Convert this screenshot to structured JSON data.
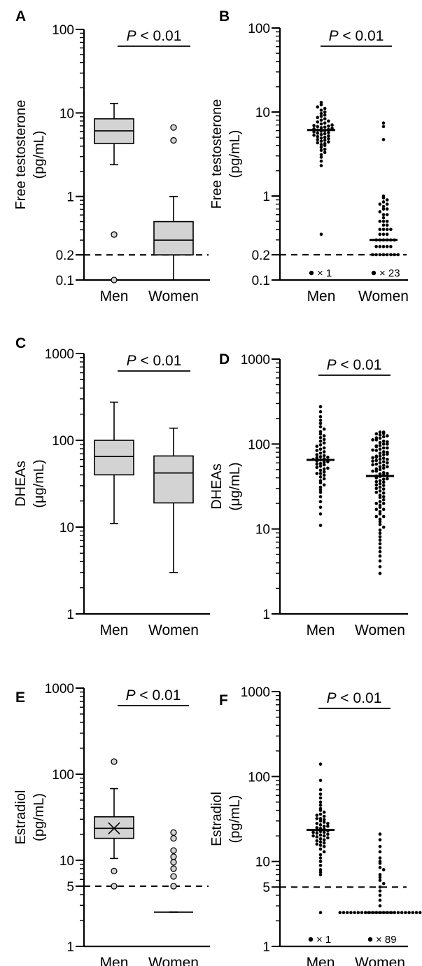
{
  "figure": {
    "panel_letters": [
      "A",
      "B",
      "C",
      "D",
      "E",
      "F"
    ],
    "pvalue_text": {
      "p": "P",
      "rest": " < 0.01"
    },
    "reference_lines": {
      "free_testosterone": 0.2,
      "estradiol": 5
    }
  },
  "chart_data": [
    {
      "panel": "A",
      "type": "box",
      "ylabel": [
        "Free testosterone",
        "(pg/mL)"
      ],
      "yscale": "log",
      "ylim": [
        0.1,
        100
      ],
      "yticks": [
        0.1,
        0.2,
        1,
        10,
        100
      ],
      "ytick_labels": [
        "0.1",
        "0.2",
        "1",
        "10",
        "100"
      ],
      "categories": [
        "Men",
        "Women"
      ],
      "pvalue": "P < 0.01",
      "reference_line": 0.2,
      "boxes": [
        {
          "name": "Men",
          "whisker_low": 2.4,
          "q1": 4.3,
          "median": 6.1,
          "q3": 8.5,
          "whisker_high": 13,
          "outliers": [
            0.35,
            0.1
          ]
        },
        {
          "name": "Women",
          "whisker_low": 0.1,
          "q1": 0.2,
          "median": 0.3,
          "q3": 0.5,
          "whisker_high": 1.0,
          "outliers": [
            6.7,
            4.7
          ]
        }
      ]
    },
    {
      "panel": "B",
      "type": "scatter",
      "ylabel": [
        "Free testosterone",
        "(pg/mL)"
      ],
      "yscale": "log",
      "ylim": [
        0.1,
        100
      ],
      "yticks": [
        0.1,
        0.2,
        1,
        10,
        100
      ],
      "ytick_labels": [
        "0.1",
        "0.2",
        "1",
        "10",
        "100"
      ],
      "categories": [
        "Men",
        "Women"
      ],
      "pvalue": "P < 0.01",
      "reference_line": 0.2,
      "series": [
        {
          "name": "Men",
          "median": 6.1,
          "points": [
            2.3,
            2.6,
            2.9,
            3.1,
            3.3,
            3.5,
            3.6,
            3.8,
            4.0,
            4.1,
            4.2,
            4.3,
            4.4,
            4.5,
            4.6,
            4.7,
            4.8,
            4.9,
            5.0,
            5.1,
            5.2,
            5.3,
            5.4,
            5.5,
            5.6,
            5.7,
            5.8,
            5.9,
            6.0,
            6.1,
            6.2,
            6.3,
            6.4,
            6.5,
            6.6,
            6.7,
            6.8,
            6.9,
            7.0,
            7.2,
            7.4,
            7.6,
            7.8,
            8.0,
            8.3,
            8.6,
            8.9,
            9.2,
            9.6,
            10.0,
            10.5,
            11.0,
            11.5,
            12.2,
            13.0,
            0.35
          ]
        },
        {
          "name": "Women",
          "median": 0.3,
          "points": [
            7.4,
            6.7,
            4.7,
            1.0,
            0.95,
            0.9,
            0.85,
            0.8,
            0.8,
            0.75,
            0.7,
            0.7,
            0.65,
            0.6,
            0.6,
            0.55,
            0.5,
            0.5,
            0.5,
            0.45,
            0.45,
            0.4,
            0.4,
            0.4,
            0.4,
            0.35,
            0.35,
            0.35,
            0.3,
            0.3,
            0.3,
            0.3,
            0.3,
            0.3,
            0.25,
            0.25,
            0.25,
            0.25,
            0.25,
            0.2,
            0.2,
            0.2,
            0.2,
            0.2,
            0.2,
            0.2,
            0.2
          ]
        }
      ],
      "below_detection": [
        {
          "category": "Men",
          "label": "× 1"
        },
        {
          "category": "Women",
          "label": "× 23"
        }
      ]
    },
    {
      "panel": "C",
      "type": "box",
      "ylabel": [
        "DHEAs",
        "(μg/mL)"
      ],
      "yscale": "log",
      "ylim": [
        1,
        1000
      ],
      "yticks": [
        1,
        10,
        100,
        1000
      ],
      "ytick_labels": [
        "1",
        "10",
        "100",
        "1000"
      ],
      "categories": [
        "Men",
        "Women"
      ],
      "pvalue": "P < 0.01",
      "boxes": [
        {
          "name": "Men",
          "whisker_low": 11,
          "q1": 40,
          "median": 65,
          "q3": 100,
          "whisker_high": 275,
          "outliers": []
        },
        {
          "name": "Women",
          "whisker_low": 3,
          "q1": 19,
          "median": 42,
          "q3": 66,
          "whisker_high": 138,
          "outliers": []
        }
      ]
    },
    {
      "panel": "D",
      "type": "scatter",
      "ylabel": [
        "DHEAs",
        "(μg/mL)"
      ],
      "yscale": "log",
      "ylim": [
        1,
        1000
      ],
      "yticks": [
        1,
        10,
        100,
        1000
      ],
      "ytick_labels": [
        "1",
        "10",
        "100",
        "1000"
      ],
      "categories": [
        "Men",
        "Women"
      ],
      "pvalue": "P < 0.01",
      "series": [
        {
          "name": "Men",
          "median": 65,
          "points": [
            11,
            15,
            18,
            21,
            24,
            27,
            29,
            31,
            33,
            35,
            37,
            39,
            41,
            43,
            45,
            47,
            49,
            51,
            53,
            55,
            57,
            59,
            61,
            63,
            65,
            67,
            69,
            71,
            73,
            75,
            78,
            81,
            84,
            87,
            90,
            94,
            98,
            103,
            108,
            113,
            119,
            125,
            131,
            140,
            150,
            160,
            175,
            190,
            210,
            240,
            275,
            62,
            58,
            70,
            66,
            52,
            45
          ]
        },
        {
          "name": "Women",
          "median": 42,
          "points": [
            3,
            3.6,
            4.2,
            4.8,
            5.4,
            6,
            6.7,
            7.4,
            8.1,
            8.9,
            9.7,
            10.5,
            11.3,
            12.2,
            13,
            14,
            15,
            16,
            17,
            18,
            19,
            20,
            21,
            22,
            23.5,
            25,
            26.5,
            28,
            29.5,
            31,
            32.5,
            34,
            35.5,
            37,
            38.5,
            40,
            41.5,
            43,
            44.5,
            46,
            48,
            50,
            52,
            54,
            56,
            58,
            60,
            62,
            64,
            66,
            68,
            70,
            72,
            75,
            78,
            81,
            84,
            87,
            90,
            93,
            96,
            100,
            104,
            108,
            112,
            117,
            122,
            128,
            133,
            138,
            24,
            27,
            30,
            33,
            36,
            39,
            42,
            45,
            48,
            51,
            54,
            57,
            60,
            63,
            66,
            69,
            72,
            76,
            80,
            85,
            90,
            95,
            100,
            106,
            112,
            118,
            125,
            132,
            138,
            20,
            17,
            14
          ]
        }
      ]
    },
    {
      "panel": "E",
      "type": "box",
      "ylabel": [
        "Estradiol",
        "(pg/mL)"
      ],
      "yscale": "log",
      "ylim": [
        1,
        1000
      ],
      "yticks": [
        1,
        5,
        10,
        100,
        1000
      ],
      "ytick_labels": [
        "1",
        "5",
        "10",
        "100",
        "1000"
      ],
      "categories": [
        "Men",
        "Women"
      ],
      "pvalue": "P < 0.01",
      "reference_line": 5,
      "boxes": [
        {
          "name": "Men",
          "whisker_low": 10.5,
          "q1": 18,
          "median": 23.5,
          "q3": 32,
          "whisker_high": 68,
          "mean": 23.5,
          "outliers": [
            140,
            7.5,
            5
          ]
        },
        {
          "name": "Women",
          "whisker_low": 2.5,
          "q1": 2.5,
          "median": 2.5,
          "q3": 2.5,
          "whisker_high": 2.5,
          "outliers": [
            21,
            18,
            13,
            11,
            9.5,
            8,
            6.5,
            5
          ]
        }
      ]
    },
    {
      "panel": "F",
      "type": "scatter",
      "ylabel": [
        "Estradiol",
        "(pg/mL)"
      ],
      "yscale": "log",
      "ylim": [
        1,
        1000
      ],
      "yticks": [
        1,
        5,
        10,
        100,
        1000
      ],
      "ytick_labels": [
        "1",
        "5",
        "10",
        "100",
        "1000"
      ],
      "categories": [
        "Men",
        "Women"
      ],
      "pvalue": "P < 0.01",
      "reference_line": 5,
      "series": [
        {
          "name": "Men",
          "median": 23.5,
          "points": [
            140,
            90,
            70,
            62,
            56,
            50,
            46,
            42,
            40,
            38,
            36,
            34,
            32,
            31,
            30,
            29,
            28,
            27,
            26,
            25,
            24.5,
            24,
            23.5,
            23,
            22.5,
            22,
            21.5,
            21,
            20.5,
            20,
            19.5,
            19,
            18.5,
            18,
            17.5,
            17,
            16.5,
            16,
            15.5,
            15,
            14,
            13,
            12,
            11,
            10,
            9,
            8,
            7.5,
            7,
            2.5,
            26,
            28,
            32,
            35,
            22,
            20
          ]
        },
        {
          "name": "Women",
          "median": 2.5,
          "points": [
            21,
            18,
            15,
            13,
            11,
            10,
            9.5,
            8.5,
            8,
            7,
            6.5,
            6,
            5.5,
            5,
            4.5,
            4,
            3.5,
            3,
            2.5,
            2.5,
            2.5,
            2.5,
            2.5,
            2.5,
            2.5,
            2.5,
            2.5,
            2.5,
            2.5,
            2.5,
            2.5,
            2.5,
            2.5,
            2.5,
            2.5,
            2.5,
            2.5,
            2.5,
            2.5,
            2.5,
            2.5
          ]
        }
      ],
      "below_detection": [
        {
          "category": "Men",
          "label": "× 1"
        },
        {
          "category": "Women",
          "label": "× 89"
        }
      ]
    }
  ]
}
